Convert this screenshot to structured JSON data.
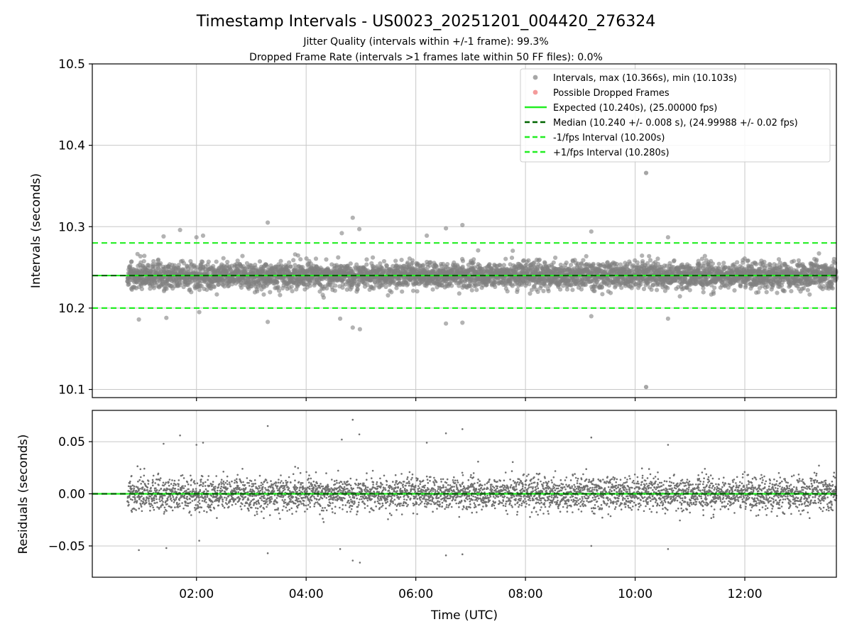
{
  "chart_data": {
    "type": "scatter",
    "title": "Timestamp Intervals - US0023_20251201_004420_276324",
    "subtitle_lines": [
      "Jitter Quality (intervals within +/-1 frame): 99.3%",
      "Dropped Frame Rate (intervals >1 frames late within 50 FF files): 0.0%"
    ],
    "xlabel": "Time (UTC)",
    "x_ticks": [
      "02:00",
      "04:00",
      "06:00",
      "08:00",
      "10:00",
      "12:00"
    ],
    "x_tick_hours": [
      2,
      4,
      6,
      8,
      10,
      12
    ],
    "x_range_hours": [
      0.1,
      13.67
    ],
    "data_start_hours": 0.74,
    "data_end_hours": 13.67,
    "interval_count": 4400,
    "top_panel": {
      "ylabel": "Intervals (seconds)",
      "ylim": [
        10.09,
        10.5
      ],
      "y_ticks": [
        "10.1",
        "10.2",
        "10.3",
        "10.4",
        "10.5"
      ],
      "y_tick_values": [
        10.1,
        10.2,
        10.3,
        10.4,
        10.5
      ],
      "max_interval": 10.366,
      "min_interval": 10.103,
      "max_time_hours": 10.2,
      "min_time_hours": 10.2
    },
    "bottom_panel": {
      "ylabel": "Residuals (seconds)",
      "ylim": [
        -0.08,
        0.08
      ],
      "y_ticks": [
        "0.05",
        "0.00",
        "−0.05"
      ],
      "y_tick_values": [
        0.05,
        0.0,
        -0.05
      ]
    },
    "reference_lines": {
      "expected": 10.24,
      "median": 10.24,
      "minus_one_fps": 10.2,
      "plus_one_fps": 10.28
    },
    "notable_points": [
      {
        "t": 0.95,
        "v": 10.186
      },
      {
        "t": 1.45,
        "v": 10.188
      },
      {
        "t": 1.7,
        "v": 10.296
      },
      {
        "t": 2.05,
        "v": 10.195
      },
      {
        "t": 2.12,
        "v": 10.289
      },
      {
        "t": 3.3,
        "v": 10.305
      },
      {
        "t": 3.3,
        "v": 10.183
      },
      {
        "t": 4.65,
        "v": 10.292
      },
      {
        "t": 4.62,
        "v": 10.187
      },
      {
        "t": 4.85,
        "v": 10.311
      },
      {
        "t": 4.85,
        "v": 10.176
      },
      {
        "t": 4.97,
        "v": 10.297
      },
      {
        "t": 4.98,
        "v": 10.174
      },
      {
        "t": 6.2,
        "v": 10.289
      },
      {
        "t": 6.55,
        "v": 10.298
      },
      {
        "t": 6.55,
        "v": 10.181
      },
      {
        "t": 6.85,
        "v": 10.302
      },
      {
        "t": 6.85,
        "v": 10.182
      },
      {
        "t": 9.2,
        "v": 10.294
      },
      {
        "t": 9.2,
        "v": 10.19
      },
      {
        "t": 10.6,
        "v": 10.287
      },
      {
        "t": 10.6,
        "v": 10.187
      },
      {
        "t": 1.4,
        "v": 10.288
      },
      {
        "t": 2.0,
        "v": 10.287
      }
    ],
    "legend": [
      {
        "label": "Intervals, max (10.366s), min (10.103s)",
        "kind": "marker",
        "color": "#808080"
      },
      {
        "label": "Possible Dropped Frames",
        "kind": "marker",
        "color": "#f07070"
      },
      {
        "label": "Expected (10.240s), (25.00000 fps)",
        "kind": "solid",
        "color": "#22ee22"
      },
      {
        "label": "Median (10.240 +/- 0.008 s), (24.99988 +/- 0.02 fps)",
        "kind": "dashed",
        "color": "#006400"
      },
      {
        "label": "-1/fps Interval (10.200s)",
        "kind": "dashed",
        "color": "#22ee22"
      },
      {
        "label": "+1/fps Interval (10.280s)",
        "kind": "dashed",
        "color": "#22ee22"
      }
    ],
    "colors": {
      "points": "#808080",
      "residual_points": "#707070",
      "expected": "#22ee22",
      "median": "#006400",
      "fps_bounds": "#22ee22",
      "grid": "#c8c8c8"
    }
  }
}
